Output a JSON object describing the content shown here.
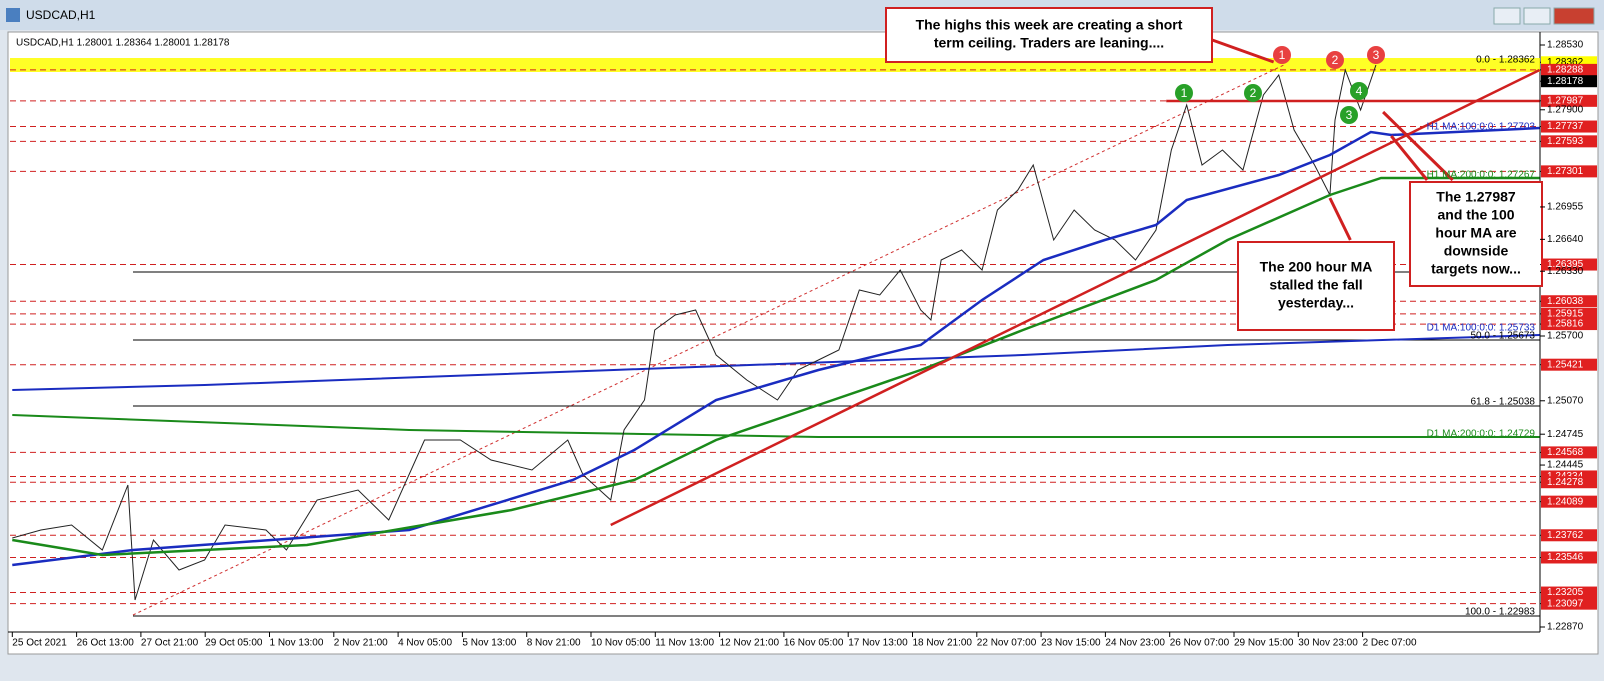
{
  "window": {
    "title": "USDCAD,H1"
  },
  "header": "USDCAD,H1  1.28001 1.28364 1.28001 1.28178",
  "price_axis": [
    {
      "value": 1.2853,
      "label": "1.28530",
      "style": "plain"
    },
    {
      "value": 1.28362,
      "label": "1.28362",
      "style": "yellow"
    },
    {
      "value": 1.28288,
      "label": "1.28288",
      "style": "red"
    },
    {
      "value": 1.28178,
      "label": "1.28178",
      "style": "black"
    },
    {
      "value": 1.27987,
      "label": "1.27987",
      "style": "red"
    },
    {
      "value": 1.279,
      "label": "1.27900",
      "style": "plain"
    },
    {
      "value": 1.27737,
      "label": "1.27737",
      "style": "red"
    },
    {
      "value": 1.27593,
      "label": "1.27593",
      "style": "red"
    },
    {
      "value": 1.27301,
      "label": "1.27301",
      "style": "red"
    },
    {
      "value": 1.26955,
      "label": "1.26955",
      "style": "plain"
    },
    {
      "value": 1.2664,
      "label": "1.26640",
      "style": "plain"
    },
    {
      "value": 1.26395,
      "label": "1.26395",
      "style": "red"
    },
    {
      "value": 1.2633,
      "label": "1.26330",
      "style": "plain"
    },
    {
      "value": 1.26038,
      "label": "1.26038",
      "style": "red"
    },
    {
      "value": 1.25915,
      "label": "1.25915",
      "style": "red"
    },
    {
      "value": 1.25816,
      "label": "1.25816",
      "style": "red"
    },
    {
      "value": 1.257,
      "label": "1.25700",
      "style": "plain"
    },
    {
      "value": 1.25421,
      "label": "1.25421",
      "style": "red"
    },
    {
      "value": 1.2507,
      "label": "1.25070",
      "style": "plain"
    },
    {
      "value": 1.24745,
      "label": "1.24745",
      "style": "plain"
    },
    {
      "value": 1.24568,
      "label": "1.24568",
      "style": "red"
    },
    {
      "value": 1.24445,
      "label": "1.24445",
      "style": "plain"
    },
    {
      "value": 1.24334,
      "label": "1.24334",
      "style": "red"
    },
    {
      "value": 1.24278,
      "label": "1.24278",
      "style": "red"
    },
    {
      "value": 1.24089,
      "label": "1.24089",
      "style": "red"
    },
    {
      "value": 1.23762,
      "label": "1.23762",
      "style": "red"
    },
    {
      "value": 1.23546,
      "label": "1.23546",
      "style": "red"
    },
    {
      "value": 1.23205,
      "label": "1.23205",
      "style": "red"
    },
    {
      "value": 1.23097,
      "label": "1.23097",
      "style": "red"
    },
    {
      "value": 1.2287,
      "label": "1.22870",
      "style": "plain"
    }
  ],
  "time_axis": [
    "25 Oct 2021",
    "26 Oct 13:00",
    "27 Oct 21:00",
    "29 Oct 05:00",
    "1 Nov 13:00",
    "2 Nov 21:00",
    "4 Nov 05:00",
    "5 Nov 13:00",
    "8 Nov 21:00",
    "10 Nov 05:00",
    "11 Nov 13:00",
    "12 Nov 21:00",
    "16 Nov 05:00",
    "17 Nov 13:00",
    "18 Nov 21:00",
    "22 Nov 07:00",
    "23 Nov 15:00",
    "24 Nov 23:00",
    "26 Nov 07:00",
    "29 Nov 15:00",
    "30 Nov 23:00",
    "2 Dec 07:00"
  ],
  "levels": {
    "fib0": "0.0 - 1.28362",
    "fib50": "50.0 - 1.25673",
    "fib618": "61.8 - 1.25038",
    "fib100": "100.0 - 1.22983",
    "h1ma100": "H1 MA:100:0:0: 1.27703",
    "h1ma200": "H1 MA:200:0:0: 1.27267",
    "d1ma100": "D1 MA:100:0:0: 1.25733",
    "d1ma200": "D1 MA:200:0:0: 1.24729"
  },
  "callouts": [
    {
      "lines": [
        "The highs this week are creating a short",
        "term ceiling. Traders are leaning...."
      ]
    },
    {
      "lines": [
        "The 200 hour MA",
        "stalled the fall",
        "yesterday..."
      ]
    },
    {
      "lines": [
        "The 1.27987",
        "and the 100",
        "hour MA are",
        "downside",
        "targets now..."
      ]
    }
  ],
  "markers": {
    "red": [
      "1",
      "2",
      "3"
    ],
    "green": [
      "1",
      "2",
      "3",
      "4"
    ]
  }
}
